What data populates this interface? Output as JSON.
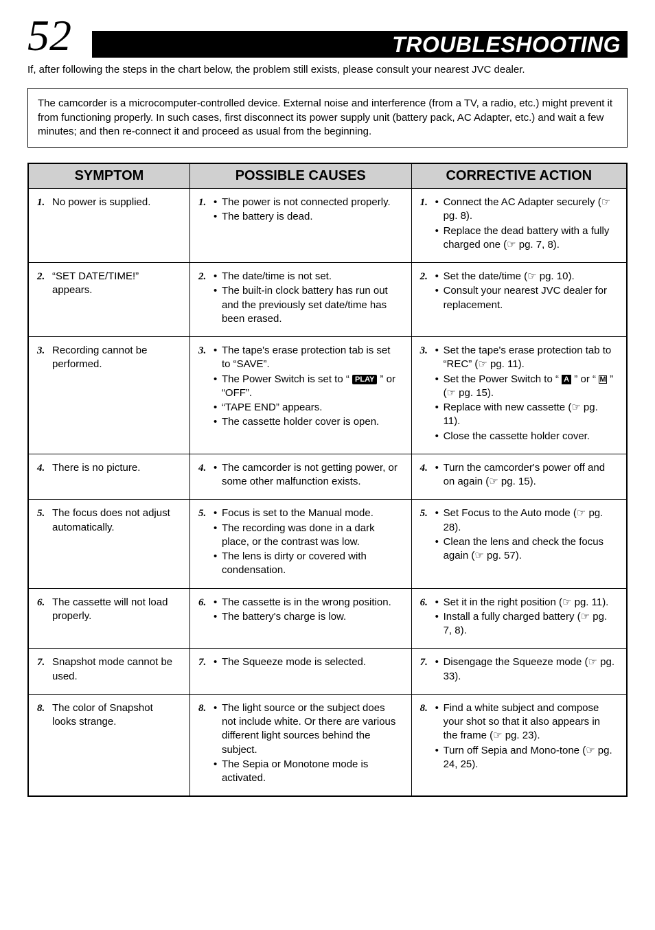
{
  "page_number": "52",
  "title": "TROUBLESHOOTING",
  "intro": "If, after following the steps in the chart below, the problem still exists, please consult your nearest JVC dealer.",
  "note": "The camcorder is a microcomputer-controlled device. External noise and interference (from a TV, a radio, etc.) might prevent it from functioning properly. In such cases, first disconnect its power supply unit (battery pack, AC Adapter, etc.) and wait a few minutes; and then re-connect it and proceed as usual from the beginning.",
  "headers": {
    "sym": "SYMPTOM",
    "cau": "POSSIBLE CAUSES",
    "act": "CORRECTIVE ACTION"
  },
  "rows": [
    {
      "n": "1.",
      "sym": [
        {
          "t": "plain",
          "v": "No power is supplied."
        }
      ],
      "cau": [
        {
          "t": "bullet",
          "v": "The power is not connected properly."
        },
        {
          "t": "bullet",
          "v": "The battery is dead."
        }
      ],
      "act": [
        {
          "t": "bullet",
          "v": "Connect the AC Adapter securely (☞ pg. 8)."
        },
        {
          "t": "bullet",
          "v": "Replace the dead battery with a fully charged one (☞ pg. 7, 8)."
        }
      ]
    },
    {
      "n": "2.",
      "sym": [
        {
          "t": "plain",
          "v": "“SET DATE/TIME!” appears."
        }
      ],
      "cau": [
        {
          "t": "bullet",
          "v": "The date/time is not set."
        },
        {
          "t": "bullet",
          "v": "The built-in clock battery has run out and the previously set date/time has been erased."
        }
      ],
      "act": [
        {
          "t": "bullet",
          "v": "Set the date/time (☞ pg. 10)."
        },
        {
          "t": "bullet",
          "v": "Consult your nearest JVC dealer for replacement."
        }
      ]
    },
    {
      "n": "3.",
      "sym": [
        {
          "t": "plain",
          "v": "Recording cannot be performed."
        }
      ],
      "cau": [
        {
          "t": "bullet",
          "v": "The tape's erase protection tab is set to “SAVE”."
        },
        {
          "t": "bullet",
          "v": "The Power Switch is set to “ {PLAY} ” or “OFF”."
        },
        {
          "t": "bullet",
          "v": "“TAPE END” appears."
        },
        {
          "t": "bullet",
          "v": "The cassette holder cover is open."
        }
      ],
      "act": [
        {
          "t": "bullet",
          "v": "Set the tape's erase protection tab to “REC” (☞ pg. 11)."
        },
        {
          "t": "bullet",
          "v": "Set the Power Switch to “ {A} ” or “ {M} ” (☞ pg. 15)."
        },
        {
          "t": "bullet",
          "v": "Replace with new cassette (☞ pg. 11)."
        },
        {
          "t": "bullet",
          "v": "Close the cassette holder cover."
        }
      ]
    },
    {
      "n": "4.",
      "sym": [
        {
          "t": "plain",
          "v": "There is no picture."
        }
      ],
      "cau": [
        {
          "t": "bullet",
          "v": "The camcorder is not getting power, or some other malfunction exists."
        }
      ],
      "act": [
        {
          "t": "bullet",
          "v": "Turn the camcorder's power off and on again (☞ pg. 15)."
        }
      ]
    },
    {
      "n": "5.",
      "sym": [
        {
          "t": "plain",
          "v": "The focus does not adjust automatically."
        }
      ],
      "cau": [
        {
          "t": "bullet",
          "v": "Focus is set to the Manual mode."
        },
        {
          "t": "bullet",
          "v": "The recording was done in a dark place, or the contrast was low."
        },
        {
          "t": "bullet",
          "v": "The lens is dirty or covered with condensation."
        }
      ],
      "act": [
        {
          "t": "bullet",
          "v": "Set Focus to the Auto mode (☞ pg. 28)."
        },
        {
          "t": "bullet",
          "v": "Clean the lens and check the focus again (☞ pg. 57)."
        }
      ]
    },
    {
      "n": "6.",
      "sym": [
        {
          "t": "plain",
          "v": "The cassette will not load properly."
        }
      ],
      "cau": [
        {
          "t": "bullet",
          "v": "The cassette is in the wrong position."
        },
        {
          "t": "bullet",
          "v": "The battery's charge is low."
        }
      ],
      "act": [
        {
          "t": "bullet",
          "v": "Set it in the right position (☞ pg. 11)."
        },
        {
          "t": "bullet",
          "v": "Install a fully charged battery (☞ pg. 7, 8)."
        }
      ]
    },
    {
      "n": "7.",
      "sym": [
        {
          "t": "plain",
          "v": "Snapshot mode cannot be used."
        }
      ],
      "cau": [
        {
          "t": "bullet",
          "v": "The Squeeze mode is selected."
        }
      ],
      "act": [
        {
          "t": "bullet",
          "v": "Disengage the Squeeze mode (☞ pg. 33)."
        }
      ]
    },
    {
      "n": "8.",
      "sym": [
        {
          "t": "plain",
          "v": "The color of Snapshot looks strange."
        }
      ],
      "cau": [
        {
          "t": "bullet",
          "v": "The light source or the subject does not include white. Or there are various different light sources behind the subject."
        },
        {
          "t": "bullet",
          "v": "The Sepia or Monotone mode is activated."
        }
      ],
      "act": [
        {
          "t": "bullet",
          "v": "Find a white subject and compose your shot so that it also appears in the frame (☞ pg. 23)."
        },
        {
          "t": "bullet",
          "v": "Turn off Sepia and Mono-tone (☞ pg. 24, 25)."
        }
      ]
    }
  ]
}
